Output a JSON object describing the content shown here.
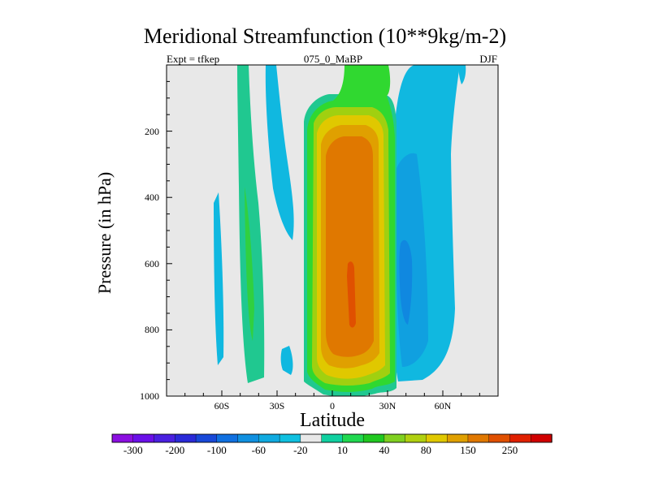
{
  "chart_data": {
    "type": "heatmap",
    "title": "Meridional Streamfunction (10**9kg/m-2)",
    "subtitle_left": "Expt = tfkep",
    "subtitle_center": "075_0_MaBP",
    "subtitle_right": "DJF",
    "xlabel": "Latitude",
    "ylabel": "Pressure (in hPa)",
    "xlim": [
      -90,
      90
    ],
    "ylim": [
      1000,
      0
    ],
    "xticks": [
      {
        "value": -60,
        "label": "60S"
      },
      {
        "value": -30,
        "label": "30S"
      },
      {
        "value": 0,
        "label": "0"
      },
      {
        "value": 30,
        "label": "30N"
      },
      {
        "value": 60,
        "label": "60N"
      }
    ],
    "yticks": [
      {
        "value": 200,
        "label": "200"
      },
      {
        "value": 400,
        "label": "400"
      },
      {
        "value": 600,
        "label": "600"
      },
      {
        "value": 800,
        "label": "800"
      },
      {
        "value": 1000,
        "label": "1000"
      }
    ],
    "background_color": "#e8e8e8",
    "colorbar": {
      "colors": [
        "#8b0fe0",
        "#6a10e8",
        "#4a20e0",
        "#2a2ad8",
        "#1848d8",
        "#1070e0",
        "#1090e0",
        "#10aae0",
        "#10c0e0",
        "#e8e8e8",
        "#10d0a0",
        "#20d850",
        "#20c820",
        "#80d020",
        "#b0d010",
        "#e0c800",
        "#e0a000",
        "#e07800",
        "#e05000",
        "#e02000",
        "#d00000"
      ],
      "labels": [
        "-300",
        "-200",
        "-100",
        "-60",
        "-20",
        "10",
        "40",
        "80",
        "150",
        "250"
      ]
    },
    "features": [
      {
        "name": "tropical-positive-cell",
        "lat_range": [
          -10,
          30
        ],
        "pressure_range": [
          10,
          1000
        ],
        "max_value": 250,
        "center_lat": 10,
        "center_pressure": 650
      },
      {
        "name": "northern-negative-cell",
        "lat_range": [
          25,
          68
        ],
        "pressure_range": [
          0,
          960
        ],
        "min_value": -60,
        "center_lat": 40,
        "center_pressure": 650
      },
      {
        "name": "southern-positive-band",
        "lat_range": [
          -50,
          -35
        ],
        "pressure_range": [
          0,
          960
        ],
        "max_value": 40,
        "center_lat": -42,
        "center_pressure": 500
      },
      {
        "name": "southern-weak-negative-band",
        "lat_range": [
          -30,
          -20
        ],
        "pressure_range": [
          0,
          650
        ],
        "min_value": -20
      },
      {
        "name": "high-latitude-southern-negative",
        "lat_range": [
          -63,
          -58
        ],
        "pressure_range": [
          360,
          900
        ],
        "min_value": -20
      }
    ]
  }
}
